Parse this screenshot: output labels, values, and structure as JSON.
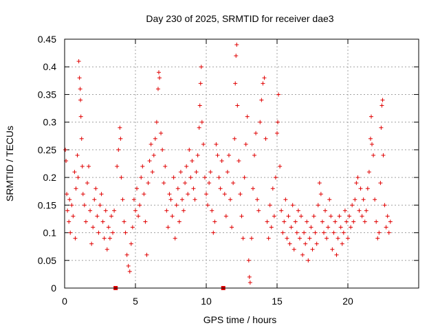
{
  "chart_data": {
    "type": "scatter",
    "title": "Day 230 of 2025, SRMTID for receiver dae3",
    "xlabel": "GPS time / hours",
    "ylabel": "SRMTID / TECUs",
    "xlim": [
      0,
      25
    ],
    "ylim": [
      0,
      0.45
    ],
    "xticks": [
      0,
      5,
      10,
      15,
      20
    ],
    "xtick_labels": [
      "0",
      "5",
      "10",
      "15",
      "20"
    ],
    "yticks": [
      0,
      0.05,
      0.1,
      0.15,
      0.2,
      0.25,
      0.3,
      0.35,
      0.4,
      0.45
    ],
    "ytick_labels": [
      "0",
      "0.05",
      "0.1",
      "0.15",
      "0.2",
      "0.25",
      "0.3",
      "0.35",
      "0.4",
      "0.45"
    ],
    "grid": true,
    "marker": "plus",
    "color": "#e00000",
    "zero_markers_x": [
      3.6,
      11.2
    ],
    "series": [
      {
        "name": "SRMTID",
        "points": [
          [
            0.05,
            0.25
          ],
          [
            0.1,
            0.23
          ],
          [
            0.15,
            0.17
          ],
          [
            0.2,
            0.14
          ],
          [
            0.3,
            0.12
          ],
          [
            0.35,
            0.16
          ],
          [
            0.4,
            0.1
          ],
          [
            0.5,
            0.15
          ],
          [
            0.6,
            0.13
          ],
          [
            0.7,
            0.21
          ],
          [
            0.75,
            0.09
          ],
          [
            0.8,
            0.18
          ],
          [
            0.9,
            0.24
          ],
          [
            0.95,
            0.2
          ],
          [
            1.0,
            0.41
          ],
          [
            1.05,
            0.38
          ],
          [
            1.1,
            0.36
          ],
          [
            1.12,
            0.34
          ],
          [
            1.15,
            0.31
          ],
          [
            1.2,
            0.27
          ],
          [
            1.25,
            0.22
          ],
          [
            1.3,
            0.17
          ],
          [
            1.4,
            0.15
          ],
          [
            1.5,
            0.12
          ],
          [
            1.6,
            0.19
          ],
          [
            1.7,
            0.22
          ],
          [
            1.8,
            0.14
          ],
          [
            1.9,
            0.08
          ],
          [
            2.0,
            0.11
          ],
          [
            2.1,
            0.16
          ],
          [
            2.2,
            0.18
          ],
          [
            2.3,
            0.13
          ],
          [
            2.4,
            0.1
          ],
          [
            2.5,
            0.15
          ],
          [
            2.6,
            0.17
          ],
          [
            2.7,
            0.12
          ],
          [
            2.8,
            0.09
          ],
          [
            2.9,
            0.14
          ],
          [
            3.0,
            0.07
          ],
          [
            3.1,
            0.11
          ],
          [
            3.2,
            0.09
          ],
          [
            3.3,
            0.13
          ],
          [
            3.4,
            0.1
          ],
          [
            3.5,
            0.14
          ],
          [
            3.7,
            0.22
          ],
          [
            3.8,
            0.25
          ],
          [
            3.9,
            0.29
          ],
          [
            3.95,
            0.27
          ],
          [
            4.0,
            0.2
          ],
          [
            4.1,
            0.16
          ],
          [
            4.2,
            0.12
          ],
          [
            4.3,
            0.1
          ],
          [
            4.4,
            0.06
          ],
          [
            4.5,
            0.04
          ],
          [
            4.6,
            0.03
          ],
          [
            4.7,
            0.08
          ],
          [
            4.8,
            0.11
          ],
          [
            4.9,
            0.16
          ],
          [
            5.0,
            0.14
          ],
          [
            5.1,
            0.18
          ],
          [
            5.2,
            0.13
          ],
          [
            5.3,
            0.15
          ],
          [
            5.4,
            0.2
          ],
          [
            5.5,
            0.22
          ],
          [
            5.6,
            0.17
          ],
          [
            5.7,
            0.12
          ],
          [
            5.8,
            0.06
          ],
          [
            5.9,
            0.19
          ],
          [
            6.0,
            0.23
          ],
          [
            6.1,
            0.26
          ],
          [
            6.2,
            0.21
          ],
          [
            6.3,
            0.24
          ],
          [
            6.4,
            0.27
          ],
          [
            6.5,
            0.3
          ],
          [
            6.6,
            0.36
          ],
          [
            6.65,
            0.39
          ],
          [
            6.7,
            0.38
          ],
          [
            6.8,
            0.28
          ],
          [
            6.9,
            0.25
          ],
          [
            7.0,
            0.19
          ],
          [
            7.1,
            0.22
          ],
          [
            7.2,
            0.14
          ],
          [
            7.3,
            0.11
          ],
          [
            7.4,
            0.17
          ],
          [
            7.5,
            0.16
          ],
          [
            7.6,
            0.13
          ],
          [
            7.7,
            0.2
          ],
          [
            7.8,
            0.09
          ],
          [
            7.9,
            0.15
          ],
          [
            8.0,
            0.18
          ],
          [
            8.1,
            0.12
          ],
          [
            8.2,
            0.21
          ],
          [
            8.3,
            0.16
          ],
          [
            8.4,
            0.14
          ],
          [
            8.5,
            0.19
          ],
          [
            8.6,
            0.22
          ],
          [
            8.7,
            0.17
          ],
          [
            8.8,
            0.25
          ],
          [
            8.9,
            0.2
          ],
          [
            9.0,
            0.23
          ],
          [
            9.1,
            0.18
          ],
          [
            9.2,
            0.16
          ],
          [
            9.3,
            0.21
          ],
          [
            9.4,
            0.24
          ],
          [
            9.5,
            0.29
          ],
          [
            9.55,
            0.33
          ],
          [
            9.6,
            0.37
          ],
          [
            9.65,
            0.4
          ],
          [
            9.7,
            0.3
          ],
          [
            9.8,
            0.26
          ],
          [
            9.9,
            0.2
          ],
          [
            10.0,
            0.17
          ],
          [
            10.1,
            0.15
          ],
          [
            10.2,
            0.19
          ],
          [
            10.3,
            0.21
          ],
          [
            10.4,
            0.14
          ],
          [
            10.5,
            0.1
          ],
          [
            10.6,
            0.12
          ],
          [
            10.7,
            0.26
          ],
          [
            10.8,
            0.24
          ],
          [
            10.9,
            0.2
          ],
          [
            11.0,
            0.18
          ],
          [
            11.1,
            0.23
          ],
          [
            11.3,
            0.17
          ],
          [
            11.4,
            0.13
          ],
          [
            11.5,
            0.21
          ],
          [
            11.6,
            0.24
          ],
          [
            11.7,
            0.16
          ],
          [
            11.8,
            0.11
          ],
          [
            11.9,
            0.19
          ],
          [
            12.0,
            0.27
          ],
          [
            12.05,
            0.37
          ],
          [
            12.1,
            0.42
          ],
          [
            12.15,
            0.44
          ],
          [
            12.2,
            0.33
          ],
          [
            12.3,
            0.23
          ],
          [
            12.4,
            0.17
          ],
          [
            12.5,
            0.13
          ],
          [
            12.6,
            0.09
          ],
          [
            12.7,
            0.2
          ],
          [
            12.8,
            0.26
          ],
          [
            12.9,
            0.31
          ],
          [
            13.0,
            0.05
          ],
          [
            13.05,
            0.02
          ],
          [
            13.1,
            0.01
          ],
          [
            13.2,
            0.09
          ],
          [
            13.3,
            0.18
          ],
          [
            13.4,
            0.24
          ],
          [
            13.5,
            0.28
          ],
          [
            13.6,
            0.16
          ],
          [
            13.7,
            0.14
          ],
          [
            13.8,
            0.3
          ],
          [
            13.9,
            0.34
          ],
          [
            14.0,
            0.37
          ],
          [
            14.1,
            0.38
          ],
          [
            14.2,
            0.27
          ],
          [
            14.3,
            0.12
          ],
          [
            14.4,
            0.09
          ],
          [
            14.5,
            0.15
          ],
          [
            14.6,
            0.11
          ],
          [
            14.7,
            0.18
          ],
          [
            14.8,
            0.13
          ],
          [
            14.9,
            0.2
          ],
          [
            15.0,
            0.28
          ],
          [
            15.05,
            0.3
          ],
          [
            15.1,
            0.35
          ],
          [
            15.2,
            0.22
          ],
          [
            15.3,
            0.14
          ],
          [
            15.4,
            0.1
          ],
          [
            15.5,
            0.12
          ],
          [
            15.6,
            0.16
          ],
          [
            15.7,
            0.09
          ],
          [
            15.8,
            0.13
          ],
          [
            15.9,
            0.08
          ],
          [
            16.0,
            0.11
          ],
          [
            16.1,
            0.15
          ],
          [
            16.2,
            0.07
          ],
          [
            16.3,
            0.12
          ],
          [
            16.4,
            0.1
          ],
          [
            16.5,
            0.14
          ],
          [
            16.6,
            0.09
          ],
          [
            16.7,
            0.13
          ],
          [
            16.8,
            0.06
          ],
          [
            16.9,
            0.1
          ],
          [
            17.0,
            0.08
          ],
          [
            17.1,
            0.12
          ],
          [
            17.2,
            0.05
          ],
          [
            17.3,
            0.09
          ],
          [
            17.4,
            0.11
          ],
          [
            17.5,
            0.07
          ],
          [
            17.6,
            0.13
          ],
          [
            17.7,
            0.1
          ],
          [
            17.8,
            0.08
          ],
          [
            17.9,
            0.15
          ],
          [
            18.0,
            0.19
          ],
          [
            18.1,
            0.17
          ],
          [
            18.2,
            0.12
          ],
          [
            18.3,
            0.1
          ],
          [
            18.4,
            0.14
          ],
          [
            18.5,
            0.09
          ],
          [
            18.6,
            0.11
          ],
          [
            18.7,
            0.16
          ],
          [
            18.8,
            0.13
          ],
          [
            18.9,
            0.07
          ],
          [
            19.0,
            0.1
          ],
          [
            19.1,
            0.12
          ],
          [
            19.2,
            0.06
          ],
          [
            19.3,
            0.09
          ],
          [
            19.4,
            0.13
          ],
          [
            19.5,
            0.11
          ],
          [
            19.6,
            0.08
          ],
          [
            19.7,
            0.1
          ],
          [
            19.8,
            0.14
          ],
          [
            19.9,
            0.12
          ],
          [
            20.0,
            0.09
          ],
          [
            20.1,
            0.13
          ],
          [
            20.2,
            0.11
          ],
          [
            20.3,
            0.15
          ],
          [
            20.4,
            0.12
          ],
          [
            20.5,
            0.16
          ],
          [
            20.6,
            0.19
          ],
          [
            20.7,
            0.2
          ],
          [
            20.8,
            0.14
          ],
          [
            20.9,
            0.18
          ],
          [
            21.0,
            0.13
          ],
          [
            21.1,
            0.16
          ],
          [
            21.2,
            0.12
          ],
          [
            21.3,
            0.14
          ],
          [
            21.4,
            0.18
          ],
          [
            21.5,
            0.21
          ],
          [
            21.6,
            0.27
          ],
          [
            21.65,
            0.31
          ],
          [
            21.7,
            0.26
          ],
          [
            21.8,
            0.24
          ],
          [
            21.9,
            0.16
          ],
          [
            22.0,
            0.12
          ],
          [
            22.1,
            0.09
          ],
          [
            22.2,
            0.1
          ],
          [
            22.3,
            0.19
          ],
          [
            22.35,
            0.29
          ],
          [
            22.4,
            0.33
          ],
          [
            22.45,
            0.34
          ],
          [
            22.5,
            0.24
          ],
          [
            22.6,
            0.15
          ],
          [
            22.7,
            0.11
          ],
          [
            22.8,
            0.13
          ],
          [
            22.9,
            0.1
          ],
          [
            23.0,
            0.12
          ]
        ]
      }
    ]
  }
}
